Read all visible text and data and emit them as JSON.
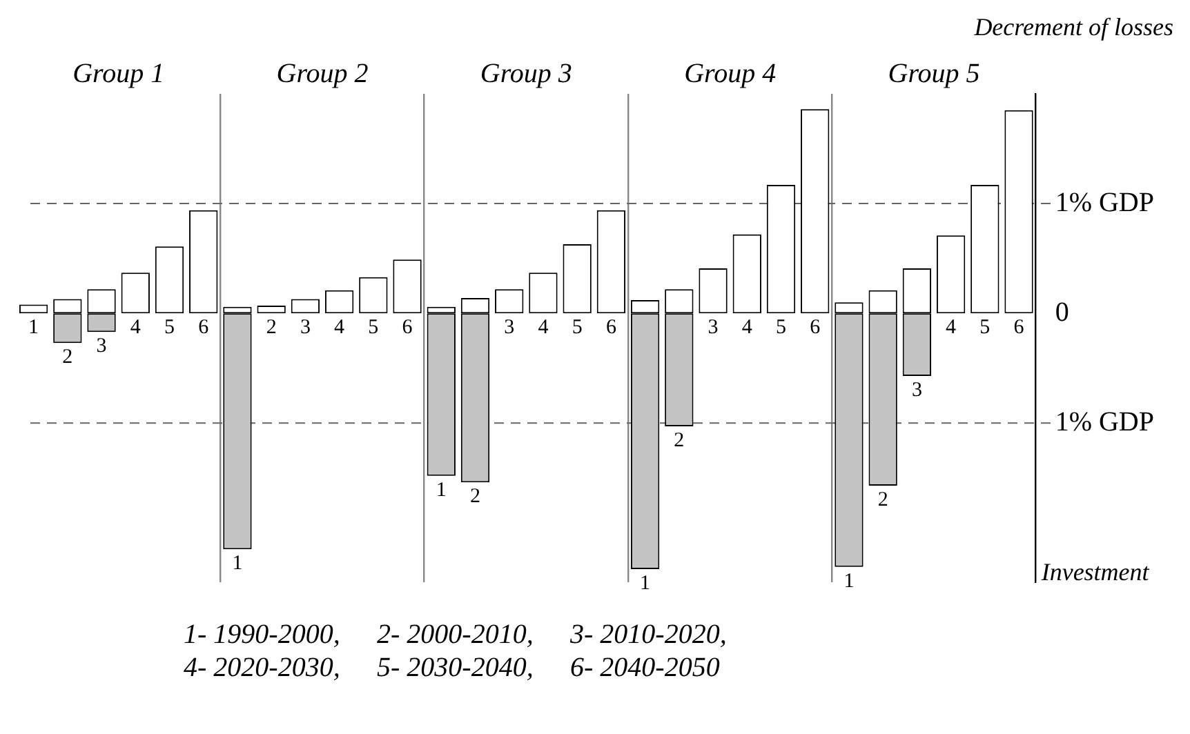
{
  "chart_data": {
    "type": "bar",
    "stacked": true,
    "ylabel": "Decrement of losses",
    "categories": [
      "1",
      "2",
      "3",
      "4",
      "5",
      "6",
      "1",
      "2",
      "3",
      "4",
      "5",
      "6",
      "1",
      "2",
      "3",
      "4",
      "5",
      "6",
      "1",
      "2",
      "3",
      "4",
      "5",
      "6",
      "1",
      "2",
      "3",
      "4",
      "5",
      "6"
    ],
    "series": [
      {
        "color": "#ffffff",
        "values": [
          0.08,
          0.13,
          0.22,
          0.37,
          0.61,
          0.94,
          0.06,
          0.07,
          0.13,
          0.21,
          0.33,
          0.49,
          0.06,
          0.14,
          0.22,
          0.37,
          0.63,
          0.94,
          0.12,
          0.22,
          0.41,
          0.72,
          1.17,
          1.86,
          0.1,
          0.21,
          0.41,
          0.71,
          1.17,
          1.85
        ]
      },
      {
        "color": "#c4c4c4",
        "values": [
          null,
          -0.27,
          -0.17,
          null,
          null,
          null,
          -2.15,
          null,
          null,
          null,
          null,
          null,
          -1.48,
          -1.54,
          null,
          null,
          null,
          null,
          -2.33,
          -1.03,
          null,
          null,
          null,
          null,
          -2.31,
          -1.57,
          -0.57,
          null,
          null,
          null
        ]
      }
    ],
    "ylim": [
      -2.45,
      2.0
    ],
    "yticks": [
      {
        "value": -1,
        "label": "1% GDP"
      },
      0,
      {
        "value": 1,
        "label": "1% GDP"
      }
    ],
    "grid": "x",
    "legend": false,
    "ref_lines": [
      {
        "axis": "y",
        "value": 1,
        "color": "#666666",
        "line_style": "dashed"
      },
      {
        "axis": "y",
        "value": -1,
        "color": "#666666",
        "line_style": "dashed"
      }
    ],
    "annotations": [
      "Group 1",
      "Group 2",
      "Group 3",
      "Group 4",
      "Group 5",
      "Investment",
      "1- 1990-2000,",
      "2- 2000-2010,",
      "3- 2010-2020,",
      "4- 2020-2030,",
      "5- 2030-2040,",
      "6- 2040-2050"
    ]
  }
}
